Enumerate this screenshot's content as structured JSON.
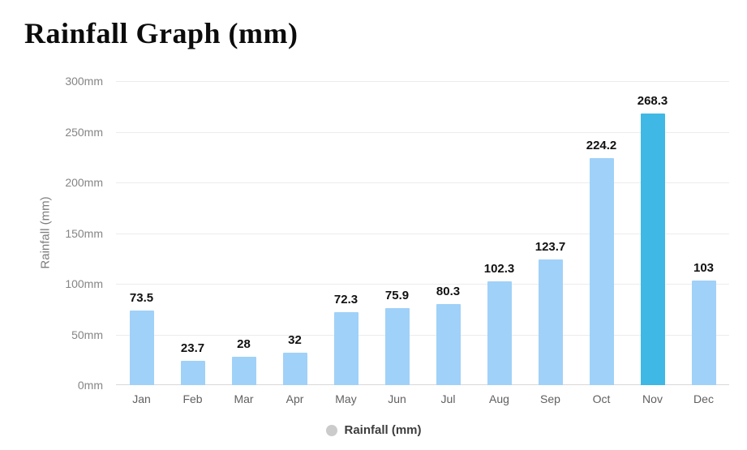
{
  "chart": {
    "title": "Rainfall Graph (mm)",
    "y_axis_title": "Rainfall (mm)",
    "legend": {
      "label": "Rainfall (mm)",
      "marker_color": "#cbcbcb"
    },
    "colors": {
      "bar": "#a0d1f8",
      "bar_highlight": "#3fb8e5",
      "grid": "#ececec",
      "baseline": "#d8d8d8"
    }
  },
  "chart_data": {
    "type": "bar",
    "title": "Rainfall Graph (mm)",
    "categories": [
      "Jan",
      "Feb",
      "Mar",
      "Apr",
      "May",
      "Jun",
      "Jul",
      "Aug",
      "Sep",
      "Oct",
      "Nov",
      "Dec"
    ],
    "values": [
      73.5,
      23.7,
      28,
      32,
      72.3,
      75.9,
      80.3,
      102.3,
      123.7,
      224.2,
      268.3,
      103
    ],
    "value_labels": [
      "73.5",
      "23.7",
      "28",
      "32",
      "72.3",
      "75.9",
      "80.3",
      "102.3",
      "123.7",
      "224.2",
      "268.3",
      "103"
    ],
    "highlighted_category": "Nov",
    "xlabel": "",
    "ylabel": "Rainfall (mm)",
    "ylim": [
      0,
      300
    ],
    "ytick_step": 50,
    "ytick_suffix": "mm",
    "grid": true,
    "legend_entries": [
      "Rainfall (mm)"
    ],
    "legend_position": "bottom"
  }
}
